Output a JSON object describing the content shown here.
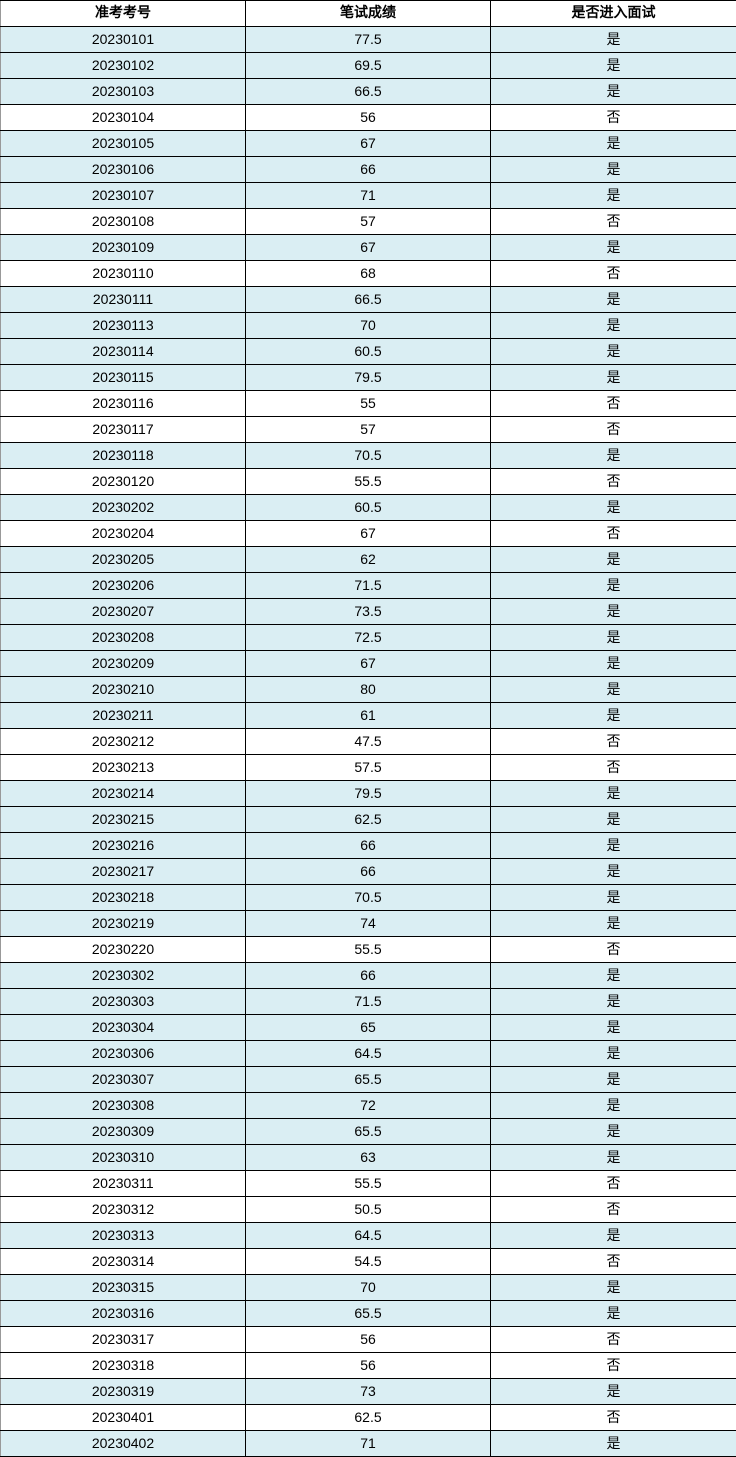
{
  "colors": {
    "highlight": "#daeef3",
    "plain": "#ffffff"
  },
  "headers": [
    "准考考号",
    "笔试成绩",
    "是否进入面试"
  ],
  "rows": [
    [
      "20230101",
      "77.5",
      "是"
    ],
    [
      "20230102",
      "69.5",
      "是"
    ],
    [
      "20230103",
      "66.5",
      "是"
    ],
    [
      "20230104",
      "56",
      "否"
    ],
    [
      "20230105",
      "67",
      "是"
    ],
    [
      "20230106",
      "66",
      "是"
    ],
    [
      "20230107",
      "71",
      "是"
    ],
    [
      "20230108",
      "57",
      "否"
    ],
    [
      "20230109",
      "67",
      "是"
    ],
    [
      "20230110",
      "68",
      "否"
    ],
    [
      "20230111",
      "66.5",
      "是"
    ],
    [
      "20230113",
      "70",
      "是"
    ],
    [
      "20230114",
      "60.5",
      "是"
    ],
    [
      "20230115",
      "79.5",
      "是"
    ],
    [
      "20230116",
      "55",
      "否"
    ],
    [
      "20230117",
      "57",
      "否"
    ],
    [
      "20230118",
      "70.5",
      "是"
    ],
    [
      "20230120",
      "55.5",
      "否"
    ],
    [
      "20230202",
      "60.5",
      "是"
    ],
    [
      "20230204",
      "67",
      "否"
    ],
    [
      "20230205",
      "62",
      "是"
    ],
    [
      "20230206",
      "71.5",
      "是"
    ],
    [
      "20230207",
      "73.5",
      "是"
    ],
    [
      "20230208",
      "72.5",
      "是"
    ],
    [
      "20230209",
      "67",
      "是"
    ],
    [
      "20230210",
      "80",
      "是"
    ],
    [
      "20230211",
      "61",
      "是"
    ],
    [
      "20230212",
      "47.5",
      "否"
    ],
    [
      "20230213",
      "57.5",
      "否"
    ],
    [
      "20230214",
      "79.5",
      "是"
    ],
    [
      "20230215",
      "62.5",
      "是"
    ],
    [
      "20230216",
      "66",
      "是"
    ],
    [
      "20230217",
      "66",
      "是"
    ],
    [
      "20230218",
      "70.5",
      "是"
    ],
    [
      "20230219",
      "74",
      "是"
    ],
    [
      "20230220",
      "55.5",
      "否"
    ],
    [
      "20230302",
      "66",
      "是"
    ],
    [
      "20230303",
      "71.5",
      "是"
    ],
    [
      "20230304",
      "65",
      "是"
    ],
    [
      "20230306",
      "64.5",
      "是"
    ],
    [
      "20230307",
      "65.5",
      "是"
    ],
    [
      "20230308",
      "72",
      "是"
    ],
    [
      "20230309",
      "65.5",
      "是"
    ],
    [
      "20230310",
      "63",
      "是"
    ],
    [
      "20230311",
      "55.5",
      "否"
    ],
    [
      "20230312",
      "50.5",
      "否"
    ],
    [
      "20230313",
      "64.5",
      "是"
    ],
    [
      "20230314",
      "54.5",
      "否"
    ],
    [
      "20230315",
      "70",
      "是"
    ],
    [
      "20230316",
      "65.5",
      "是"
    ],
    [
      "20230317",
      "56",
      "否"
    ],
    [
      "20230318",
      "56",
      "否"
    ],
    [
      "20230319",
      "73",
      "是"
    ],
    [
      "20230401",
      "62.5",
      "否"
    ],
    [
      "20230402",
      "71",
      "是"
    ]
  ]
}
